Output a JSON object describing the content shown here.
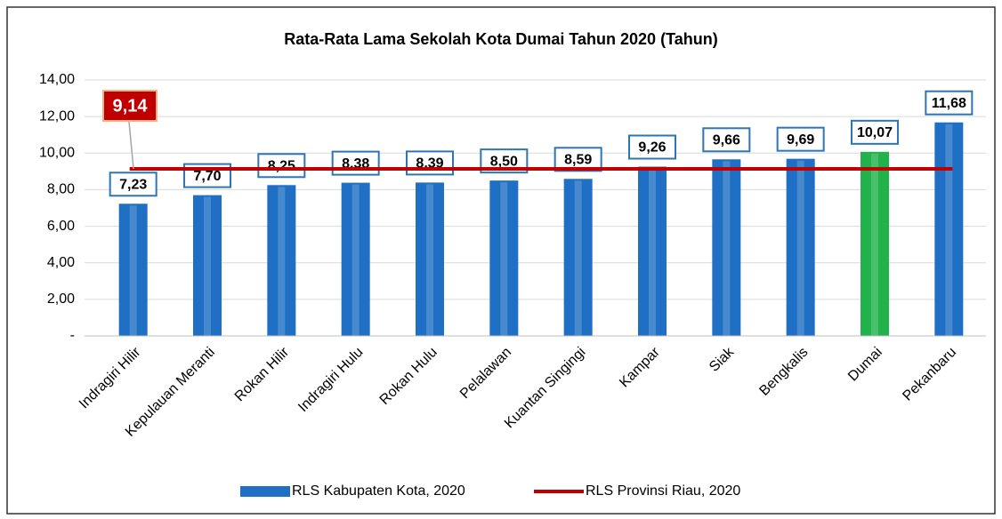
{
  "chart_data": {
    "type": "bar",
    "title": "Rata-Rata Lama Sekolah Kota Dumai Tahun 2020 (Tahun)",
    "categories": [
      "Indragiri Hilir",
      "Kepulauan Meranti",
      "Rokan Hilir",
      "Indragiri Hulu",
      "Rokan Hulu",
      "Pelalawan",
      "Kuantan Singingi",
      "Kampar",
      "Siak",
      "Bengkalis",
      "Dumai",
      "Pekanbaru"
    ],
    "series": [
      {
        "name": "RLS Kabupaten Kota, 2020",
        "color": "#1f6fc5",
        "colors": [
          "#1f6fc5",
          "#1f6fc5",
          "#1f6fc5",
          "#1f6fc5",
          "#1f6fc5",
          "#1f6fc5",
          "#1f6fc5",
          "#1f6fc5",
          "#1f6fc5",
          "#1f6fc5",
          "#21b24b",
          "#1f6fc5"
        ],
        "values": [
          7.23,
          7.7,
          8.25,
          8.38,
          8.39,
          8.5,
          8.59,
          9.26,
          9.66,
          9.69,
          10.07,
          11.68
        ],
        "value_labels": [
          "7,23",
          "7,70",
          "8,25",
          "8,38",
          "8,39",
          "8,50",
          "8,59",
          "9,26",
          "9,66",
          "9,69",
          "10,07",
          "11,68"
        ]
      }
    ],
    "reference_line": {
      "name": "RLS Provinsi Riau, 2020",
      "color": "#c00000",
      "value": 9.14,
      "label": "9,14"
    },
    "ylim": [
      0,
      14
    ],
    "yticks": [
      {
        "value": 0,
        "label": "-"
      },
      {
        "value": 2,
        "label": "2,00"
      },
      {
        "value": 4,
        "label": "4,00"
      },
      {
        "value": 6,
        "label": "6,00"
      },
      {
        "value": 8,
        "label": "8,00"
      },
      {
        "value": 10,
        "label": "10,00"
      },
      {
        "value": 12,
        "label": "12,00"
      },
      {
        "value": 14,
        "label": "14,00"
      }
    ],
    "grid": true
  }
}
